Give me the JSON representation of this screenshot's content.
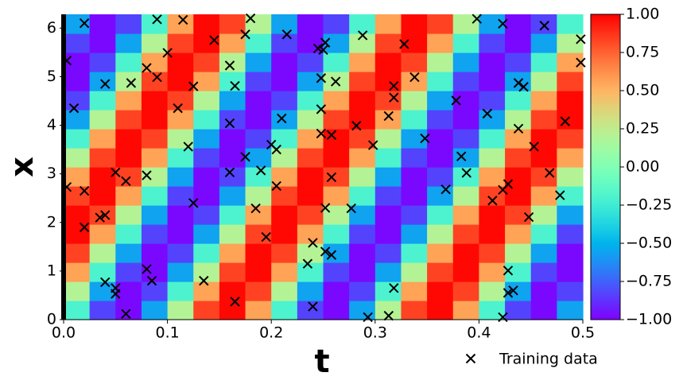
{
  "chart_data": {
    "type": "heatmap",
    "xlabel": "t",
    "ylabel": "x",
    "xlim": [
      0,
      0.5
    ],
    "ylim": [
      0,
      6.283
    ],
    "xticks": [
      {
        "value": 0,
        "label": "0.0"
      },
      {
        "value": 0.1,
        "label": "0.1"
      },
      {
        "value": 0.2,
        "label": "0.2"
      },
      {
        "value": 0.3,
        "label": "0.3"
      },
      {
        "value": 0.4,
        "label": "0.4"
      },
      {
        "value": 0.5,
        "label": "0.5"
      }
    ],
    "yticks": [
      0,
      1,
      2,
      3,
      4,
      5,
      6
    ],
    "colormap": "rainbow",
    "clim": [
      -1,
      1
    ],
    "cticks": [
      {
        "value": 1,
        "label": "1.00"
      },
      {
        "value": 0.75,
        "label": "0.75"
      },
      {
        "value": 0.5,
        "label": "0.50"
      },
      {
        "value": 0.25,
        "label": "0.25"
      },
      {
        "value": 0,
        "label": "0.00"
      },
      {
        "value": -0.25,
        "label": "−0.25"
      },
      {
        "value": -0.5,
        "label": "−0.50"
      },
      {
        "value": -0.75,
        "label": "−0.75"
      },
      {
        "value": -1,
        "label": "−1.00"
      }
    ],
    "z": [
      [
        -0.2,
        -0.83,
        -0.98,
        -0.56,
        0.2,
        0.83,
        0.98,
        0.56,
        -0.2,
        -0.83,
        -0.98,
        -0.56,
        0.2,
        0.83,
        0.98,
        0.56,
        -0.2,
        -0.83,
        -0.98,
        -0.56
      ],
      [
        0.2,
        -0.56,
        -0.98,
        -0.83,
        -0.2,
        0.56,
        0.98,
        0.83,
        0.2,
        -0.56,
        -0.98,
        -0.83,
        -0.2,
        0.56,
        0.98,
        0.83,
        0.2,
        -0.56,
        -0.98,
        -0.83
      ],
      [
        0.56,
        -0.2,
        -0.83,
        -0.98,
        -0.56,
        0.2,
        0.83,
        0.98,
        0.56,
        -0.2,
        -0.83,
        -0.98,
        -0.56,
        0.2,
        0.83,
        0.98,
        0.56,
        -0.2,
        -0.83,
        -0.98
      ],
      [
        0.83,
        0.2,
        -0.56,
        -0.98,
        -0.83,
        -0.2,
        0.56,
        0.98,
        0.83,
        0.2,
        -0.56,
        -0.98,
        -0.83,
        -0.2,
        0.56,
        0.98,
        0.83,
        0.2,
        -0.56,
        -0.98
      ],
      [
        0.98,
        0.56,
        -0.2,
        -0.83,
        -0.98,
        -0.56,
        0.2,
        0.83,
        0.98,
        0.56,
        -0.2,
        -0.83,
        -0.98,
        -0.56,
        0.2,
        0.83,
        0.98,
        0.56,
        -0.2,
        -0.83
      ],
      [
        0.98,
        0.83,
        0.2,
        -0.56,
        -0.98,
        -0.83,
        -0.2,
        0.56,
        0.98,
        0.83,
        0.2,
        -0.56,
        -0.98,
        -0.83,
        -0.2,
        0.56,
        0.98,
        0.83,
        0.2,
        -0.56
      ],
      [
        0.83,
        0.98,
        0.56,
        -0.2,
        -0.83,
        -0.98,
        -0.56,
        0.2,
        0.83,
        0.98,
        0.56,
        -0.2,
        -0.83,
        -0.98,
        -0.56,
        0.2,
        0.83,
        0.98,
        0.56,
        -0.2
      ],
      [
        0.56,
        0.98,
        0.83,
        0.2,
        -0.56,
        -0.98,
        -0.83,
        -0.2,
        0.56,
        0.98,
        0.83,
        0.2,
        -0.56,
        -0.98,
        -0.83,
        -0.2,
        0.56,
        0.98,
        0.83,
        0.2
      ],
      [
        0.2,
        0.83,
        0.98,
        0.56,
        -0.2,
        -0.83,
        -0.98,
        -0.56,
        0.2,
        0.83,
        0.98,
        0.56,
        -0.2,
        -0.83,
        -0.98,
        -0.56,
        0.2,
        0.83,
        0.98,
        0.56
      ],
      [
        -0.2,
        0.56,
        0.98,
        0.83,
        0.2,
        -0.56,
        -0.98,
        -0.83,
        -0.2,
        0.56,
        0.98,
        0.83,
        0.2,
        -0.56,
        -0.98,
        -0.83,
        -0.2,
        0.56,
        0.98,
        0.83
      ],
      [
        -0.56,
        0.2,
        0.83,
        0.98,
        0.56,
        -0.2,
        -0.83,
        -0.98,
        -0.56,
        0.2,
        0.83,
        0.98,
        0.56,
        -0.2,
        -0.83,
        -0.98,
        -0.56,
        0.2,
        0.83,
        0.98
      ],
      [
        -0.83,
        -0.2,
        0.56,
        0.98,
        0.83,
        0.2,
        -0.56,
        -0.98,
        -0.83,
        -0.2,
        0.56,
        0.98,
        0.83,
        0.2,
        -0.56,
        -0.98,
        -0.83,
        -0.2,
        0.56,
        0.98
      ],
      [
        -0.98,
        -0.56,
        0.2,
        0.83,
        0.98,
        0.56,
        -0.2,
        -0.83,
        -0.98,
        -0.56,
        0.2,
        0.83,
        0.98,
        0.56,
        -0.2,
        -0.83,
        -0.98,
        -0.56,
        0.2,
        0.83
      ],
      [
        -0.98,
        -0.83,
        -0.2,
        0.56,
        0.98,
        0.83,
        0.2,
        -0.56,
        -0.98,
        -0.83,
        -0.2,
        0.56,
        0.98,
        0.83,
        0.2,
        -0.56,
        -0.98,
        -0.83,
        -0.2,
        0.56
      ],
      [
        -0.83,
        -0.98,
        -0.56,
        0.2,
        0.83,
        0.98,
        0.56,
        -0.2,
        -0.83,
        -0.98,
        -0.56,
        0.2,
        0.83,
        0.98,
        0.56,
        -0.2,
        -0.83,
        -0.98,
        -0.56,
        0.2
      ],
      [
        -0.56,
        -0.98,
        -0.83,
        -0.2,
        0.56,
        0.98,
        0.83,
        0.2,
        -0.56,
        -0.98,
        -0.83,
        -0.2,
        0.56,
        0.98,
        0.83,
        0.2,
        -0.56,
        -0.98,
        -0.83,
        -0.2
      ]
    ],
    "series": [
      {
        "name": "Training data",
        "type": "scatter",
        "color": "#000000",
        "t": [
          0.003,
          0.01,
          0.003,
          0.02,
          0.02,
          0.02,
          0.035,
          0.04,
          0.04,
          0.04,
          0.05,
          0.05,
          0.05,
          0.06,
          0.06,
          0.065,
          0.08,
          0.08,
          0.08,
          0.085,
          0.09,
          0.09,
          0.1,
          0.11,
          0.115,
          0.12,
          0.125,
          0.125,
          0.135,
          0.145,
          0.16,
          0.16,
          0.16,
          0.165,
          0.165,
          0.175,
          0.175,
          0.18,
          0.185,
          0.19,
          0.195,
          0.2,
          0.205,
          0.205,
          0.21,
          0.215,
          0.235,
          0.24,
          0.24,
          0.245,
          0.248,
          0.248,
          0.248,
          0.25,
          0.252,
          0.252,
          0.252,
          0.258,
          0.258,
          0.258,
          0.262,
          0.277,
          0.282,
          0.288,
          0.293,
          0.298,
          0.313,
          0.313,
          0.318,
          0.318,
          0.318,
          0.328,
          0.338,
          0.348,
          0.368,
          0.378,
          0.383,
          0.388,
          0.398,
          0.408,
          0.413,
          0.423,
          0.423,
          0.423,
          0.428,
          0.428,
          0.428,
          0.433,
          0.438,
          0.438,
          0.443,
          0.448,
          0.453,
          0.463,
          0.468,
          0.478,
          0.483,
          0.498,
          0.498
        ],
        "x": [
          5.33,
          4.35,
          2.73,
          6.1,
          2.65,
          1.9,
          2.1,
          2.15,
          4.85,
          0.77,
          3.03,
          0.65,
          0.53,
          2.85,
          0.12,
          4.87,
          5.18,
          2.97,
          1.04,
          0.8,
          4.99,
          6.18,
          5.49,
          4.35,
          6.17,
          3.56,
          4.8,
          2.4,
          0.8,
          5.75,
          5.23,
          4.04,
          3.03,
          4.81,
          0.37,
          5.87,
          3.35,
          6.2,
          2.29,
          3.07,
          1.7,
          3.6,
          3.5,
          2.75,
          4.14,
          5.87,
          1.15,
          1.58,
          0.27,
          5.58,
          4.97,
          4.33,
          3.83,
          5.55,
          5.7,
          2.3,
          1.4,
          1.33,
          2.93,
          3.8,
          4.9,
          2.29,
          3.99,
          5.85,
          0.05,
          3.59,
          4.19,
          0.08,
          4.81,
          4.57,
          0.65,
          5.67,
          4.99,
          3.73,
          2.68,
          4.51,
          3.36,
          3.02,
          6.19,
          4.24,
          2.45,
          6.09,
          2.67,
          0.05,
          2.79,
          1.01,
          0.55,
          0.6,
          4.87,
          3.93,
          4.79,
          2.11,
          3.56,
          6.05,
          3.02,
          2.56,
          4.08,
          5.77,
          5.29
        ]
      }
    ],
    "legend": "lower right"
  }
}
